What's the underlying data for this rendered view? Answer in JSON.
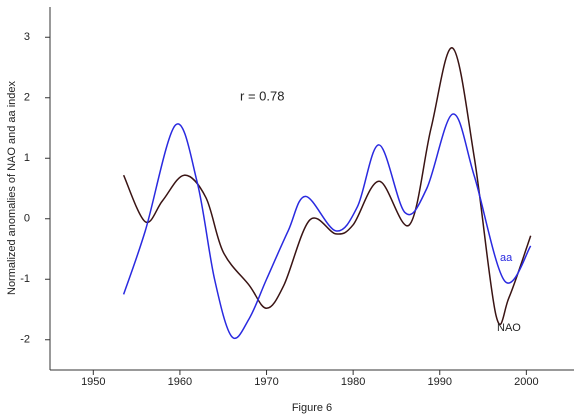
{
  "chart_data": {
    "type": "line",
    "x_label": "Figure 6",
    "y_label": "Normalized anomalies of NAO and aa index",
    "annotation": "r = 0.78",
    "xlim": [
      1945,
      2005.5
    ],
    "ylim": [
      -2.5,
      3.5
    ],
    "xticks": [
      1950,
      1960,
      1970,
      1980,
      1990,
      2000
    ],
    "yticks": [
      -2,
      -1,
      0,
      1,
      2,
      3
    ],
    "series": [
      {
        "name": "NAO",
        "color": "#3a1414",
        "x": [
          1953.5,
          1956,
          1958,
          1960.5,
          1963,
          1965,
          1968,
          1970,
          1972,
          1975,
          1978,
          1980,
          1983,
          1986.5,
          1989,
          1991.5,
          1994,
          1996.5,
          1998,
          2000.5
        ],
        "values": [
          0.72,
          -0.05,
          0.3,
          0.72,
          0.35,
          -0.55,
          -1.1,
          -1.48,
          -1.1,
          -0.02,
          -0.25,
          -0.1,
          0.62,
          -0.1,
          1.5,
          2.82,
          1.0,
          -1.6,
          -1.3,
          -0.28
        ]
      },
      {
        "name": "aa",
        "color": "#2a2ae0",
        "x": [
          1953.5,
          1956,
          1959.5,
          1962,
          1964,
          1966,
          1968,
          1970,
          1972.5,
          1974.5,
          1978,
          1980.5,
          1983,
          1986,
          1988.5,
          1991.5,
          1994,
          1997.5,
          2000.5
        ],
        "values": [
          -1.25,
          -0.2,
          1.55,
          0.6,
          -1.0,
          -1.95,
          -1.65,
          -1.0,
          -0.2,
          0.37,
          -0.2,
          0.2,
          1.22,
          0.1,
          0.5,
          1.73,
          0.7,
          -1.03,
          -0.45
        ]
      }
    ]
  }
}
